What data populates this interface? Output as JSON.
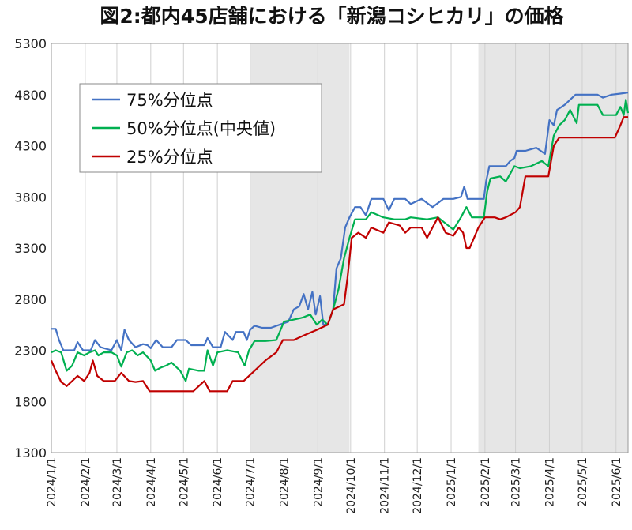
{
  "chart_data": {
    "type": "line",
    "title": "図2:都内45店舗における「新潟コシヒカリ」の価格",
    "xlabel": "",
    "ylabel": "",
    "ylim": [
      1300,
      5300
    ],
    "yticks": [
      1300,
      1800,
      2300,
      2800,
      3300,
      3800,
      4300,
      4800,
      5300
    ],
    "x_tick_labels": [
      "2024/1/1",
      "2024/2/1",
      "2024/3/1",
      "2024/4/1",
      "2024/5/1",
      "2024/6/1",
      "2024/7/1",
      "2024/8/1",
      "2024/9/1",
      "2024/10/1",
      "2024/11/1",
      "2024/12/1",
      "2025/1/1",
      "2025/2/1",
      "2025/3/1",
      "2025/4/1",
      "2025/5/1",
      "2025/6/1"
    ],
    "x_range": [
      "2024-01-01",
      "2025-06-12"
    ],
    "grid": "vertical",
    "legend_position": "top-left",
    "shaded_periods": [
      [
        "2024-07-01",
        "2024-09-30"
      ],
      [
        "2025-01-26",
        "2025-06-12"
      ]
    ],
    "series": [
      {
        "name": "75%分位点",
        "color": "#4472C4",
        "points": [
          [
            "2024-01-01",
            2510
          ],
          [
            "2024-01-05",
            2510
          ],
          [
            "2024-01-08",
            2400
          ],
          [
            "2024-01-12",
            2300
          ],
          [
            "2024-01-22",
            2300
          ],
          [
            "2024-01-25",
            2380
          ],
          [
            "2024-01-30",
            2300
          ],
          [
            "2024-02-06",
            2300
          ],
          [
            "2024-02-10",
            2400
          ],
          [
            "2024-02-15",
            2330
          ],
          [
            "2024-02-25",
            2300
          ],
          [
            "2024-03-01",
            2400
          ],
          [
            "2024-03-05",
            2300
          ],
          [
            "2024-03-08",
            2500
          ],
          [
            "2024-03-12",
            2400
          ],
          [
            "2024-03-18",
            2330
          ],
          [
            "2024-03-25",
            2360
          ],
          [
            "2024-03-29",
            2350
          ],
          [
            "2024-04-01",
            2320
          ],
          [
            "2024-04-06",
            2400
          ],
          [
            "2024-04-12",
            2330
          ],
          [
            "2024-04-20",
            2330
          ],
          [
            "2024-04-25",
            2400
          ],
          [
            "2024-05-03",
            2400
          ],
          [
            "2024-05-08",
            2350
          ],
          [
            "2024-05-20",
            2350
          ],
          [
            "2024-05-23",
            2420
          ],
          [
            "2024-05-28",
            2330
          ],
          [
            "2024-06-04",
            2330
          ],
          [
            "2024-06-08",
            2480
          ],
          [
            "2024-06-15",
            2400
          ],
          [
            "2024-06-18",
            2480
          ],
          [
            "2024-06-25",
            2480
          ],
          [
            "2024-06-28",
            2400
          ],
          [
            "2024-07-01",
            2500
          ],
          [
            "2024-07-05",
            2540
          ],
          [
            "2024-07-12",
            2520
          ],
          [
            "2024-07-20",
            2520
          ],
          [
            "2024-07-28",
            2550
          ],
          [
            "2024-08-05",
            2580
          ],
          [
            "2024-08-10",
            2700
          ],
          [
            "2024-08-15",
            2730
          ],
          [
            "2024-08-19",
            2850
          ],
          [
            "2024-08-23",
            2700
          ],
          [
            "2024-08-27",
            2870
          ],
          [
            "2024-08-30",
            2650
          ],
          [
            "2024-09-03",
            2830
          ],
          [
            "2024-09-06",
            2550
          ],
          [
            "2024-09-10",
            2550
          ],
          [
            "2024-09-15",
            2700
          ],
          [
            "2024-09-18",
            3100
          ],
          [
            "2024-09-22",
            3200
          ],
          [
            "2024-09-26",
            3500
          ],
          [
            "2024-09-30",
            3600
          ],
          [
            "2024-10-05",
            3700
          ],
          [
            "2024-10-10",
            3700
          ],
          [
            "2024-10-15",
            3620
          ],
          [
            "2024-10-20",
            3780
          ],
          [
            "2024-10-31",
            3780
          ],
          [
            "2024-11-05",
            3670
          ],
          [
            "2024-11-10",
            3780
          ],
          [
            "2024-11-20",
            3780
          ],
          [
            "2024-11-25",
            3730
          ],
          [
            "2024-12-05",
            3780
          ],
          [
            "2024-12-15",
            3700
          ],
          [
            "2024-12-25",
            3780
          ],
          [
            "2025-01-03",
            3780
          ],
          [
            "2025-01-10",
            3800
          ],
          [
            "2025-01-13",
            3900
          ],
          [
            "2025-01-16",
            3780
          ],
          [
            "2025-01-31",
            3780
          ],
          [
            "2025-02-02",
            3950
          ],
          [
            "2025-02-05",
            4100
          ],
          [
            "2025-02-20",
            4100
          ],
          [
            "2025-02-24",
            4150
          ],
          [
            "2025-02-28",
            4180
          ],
          [
            "2025-03-02",
            4250
          ],
          [
            "2025-03-10",
            4250
          ],
          [
            "2025-03-20",
            4280
          ],
          [
            "2025-03-28",
            4220
          ],
          [
            "2025-04-01",
            4550
          ],
          [
            "2025-04-05",
            4500
          ],
          [
            "2025-04-08",
            4650
          ],
          [
            "2025-04-15",
            4700
          ],
          [
            "2025-04-20",
            4750
          ],
          [
            "2025-04-25",
            4800
          ],
          [
            "2025-05-15",
            4800
          ],
          [
            "2025-05-20",
            4770
          ],
          [
            "2025-05-28",
            4800
          ],
          [
            "2025-06-05",
            4810
          ],
          [
            "2025-06-12",
            4820
          ]
        ]
      },
      {
        "name": "50%分位点(中央値)",
        "color": "#00B050",
        "points": [
          [
            "2024-01-01",
            2280
          ],
          [
            "2024-01-05",
            2300
          ],
          [
            "2024-01-10",
            2280
          ],
          [
            "2024-01-15",
            2100
          ],
          [
            "2024-01-20",
            2150
          ],
          [
            "2024-01-25",
            2280
          ],
          [
            "2024-01-31",
            2250
          ],
          [
            "2024-02-05",
            2280
          ],
          [
            "2024-02-10",
            2300
          ],
          [
            "2024-02-13",
            2250
          ],
          [
            "2024-02-18",
            2280
          ],
          [
            "2024-02-25",
            2280
          ],
          [
            "2024-03-01",
            2250
          ],
          [
            "2024-03-05",
            2140
          ],
          [
            "2024-03-10",
            2280
          ],
          [
            "2024-03-15",
            2300
          ],
          [
            "2024-03-20",
            2250
          ],
          [
            "2024-03-25",
            2280
          ],
          [
            "2024-04-01",
            2200
          ],
          [
            "2024-04-05",
            2100
          ],
          [
            "2024-04-10",
            2130
          ],
          [
            "2024-04-15",
            2150
          ],
          [
            "2024-04-20",
            2180
          ],
          [
            "2024-04-28",
            2100
          ],
          [
            "2024-05-03",
            2000
          ],
          [
            "2024-05-06",
            2120
          ],
          [
            "2024-05-15",
            2100
          ],
          [
            "2024-05-20",
            2100
          ],
          [
            "2024-05-23",
            2300
          ],
          [
            "2024-05-28",
            2150
          ],
          [
            "2024-06-01",
            2280
          ],
          [
            "2024-06-10",
            2300
          ],
          [
            "2024-06-20",
            2280
          ],
          [
            "2024-06-26",
            2150
          ],
          [
            "2024-06-30",
            2300
          ],
          [
            "2024-07-05",
            2390
          ],
          [
            "2024-07-15",
            2390
          ],
          [
            "2024-07-25",
            2400
          ],
          [
            "2024-08-01",
            2580
          ],
          [
            "2024-08-10",
            2600
          ],
          [
            "2024-08-18",
            2620
          ],
          [
            "2024-08-25",
            2650
          ],
          [
            "2024-08-31",
            2550
          ],
          [
            "2024-09-05",
            2600
          ],
          [
            "2024-09-10",
            2550
          ],
          [
            "2024-09-15",
            2700
          ],
          [
            "2024-09-20",
            2900
          ],
          [
            "2024-09-25",
            3200
          ],
          [
            "2024-09-30",
            3400
          ],
          [
            "2024-10-05",
            3580
          ],
          [
            "2024-10-15",
            3580
          ],
          [
            "2024-10-20",
            3650
          ],
          [
            "2024-10-31",
            3600
          ],
          [
            "2024-11-10",
            3580
          ],
          [
            "2024-11-20",
            3580
          ],
          [
            "2024-11-25",
            3600
          ],
          [
            "2024-12-10",
            3580
          ],
          [
            "2024-12-20",
            3600
          ],
          [
            "2025-01-03",
            3480
          ],
          [
            "2025-01-10",
            3600
          ],
          [
            "2025-01-15",
            3700
          ],
          [
            "2025-01-20",
            3600
          ],
          [
            "2025-01-31",
            3600
          ],
          [
            "2025-02-03",
            3850
          ],
          [
            "2025-02-06",
            3980
          ],
          [
            "2025-02-15",
            4000
          ],
          [
            "2025-02-20",
            3950
          ],
          [
            "2025-02-28",
            4100
          ],
          [
            "2025-03-05",
            4080
          ],
          [
            "2025-03-15",
            4100
          ],
          [
            "2025-03-25",
            4150
          ],
          [
            "2025-03-31",
            4100
          ],
          [
            "2025-04-05",
            4400
          ],
          [
            "2025-04-10",
            4500
          ],
          [
            "2025-04-15",
            4550
          ],
          [
            "2025-04-20",
            4650
          ],
          [
            "2025-04-26",
            4520
          ],
          [
            "2025-04-28",
            4700
          ],
          [
            "2025-05-15",
            4700
          ],
          [
            "2025-05-20",
            4600
          ],
          [
            "2025-06-01",
            4600
          ],
          [
            "2025-06-05",
            4680
          ],
          [
            "2025-06-08",
            4600
          ],
          [
            "2025-06-10",
            4750
          ],
          [
            "2025-06-12",
            4620
          ]
        ]
      },
      {
        "name": "25%分位点",
        "color": "#C00000",
        "points": [
          [
            "2024-01-01",
            2200
          ],
          [
            "2024-01-05",
            2100
          ],
          [
            "2024-01-10",
            1990
          ],
          [
            "2024-01-15",
            1950
          ],
          [
            "2024-01-20",
            2000
          ],
          [
            "2024-01-25",
            2050
          ],
          [
            "2024-01-31",
            2000
          ],
          [
            "2024-02-05",
            2080
          ],
          [
            "2024-02-08",
            2200
          ],
          [
            "2024-02-12",
            2050
          ],
          [
            "2024-02-18",
            2000
          ],
          [
            "2024-02-28",
            2000
          ],
          [
            "2024-03-05",
            2080
          ],
          [
            "2024-03-12",
            2000
          ],
          [
            "2024-03-18",
            1990
          ],
          [
            "2024-03-25",
            2000
          ],
          [
            "2024-03-31",
            1900
          ],
          [
            "2024-04-10",
            1900
          ],
          [
            "2024-04-20",
            1900
          ],
          [
            "2024-05-10",
            1900
          ],
          [
            "2024-05-15",
            1950
          ],
          [
            "2024-05-20",
            2000
          ],
          [
            "2024-05-25",
            1900
          ],
          [
            "2024-06-10",
            1900
          ],
          [
            "2024-06-15",
            2000
          ],
          [
            "2024-06-25",
            2000
          ],
          [
            "2024-06-30",
            2050
          ],
          [
            "2024-07-05",
            2100
          ],
          [
            "2024-07-15",
            2200
          ],
          [
            "2024-07-25",
            2280
          ],
          [
            "2024-07-31",
            2400
          ],
          [
            "2024-08-10",
            2400
          ],
          [
            "2024-08-20",
            2450
          ],
          [
            "2024-08-31",
            2500
          ],
          [
            "2024-09-10",
            2550
          ],
          [
            "2024-09-15",
            2700
          ],
          [
            "2024-09-25",
            2750
          ],
          [
            "2024-09-28",
            3000
          ],
          [
            "2024-10-02",
            3400
          ],
          [
            "2024-10-08",
            3450
          ],
          [
            "2024-10-15",
            3400
          ],
          [
            "2024-10-20",
            3500
          ],
          [
            "2024-10-31",
            3450
          ],
          [
            "2024-11-05",
            3550
          ],
          [
            "2024-11-15",
            3520
          ],
          [
            "2024-11-20",
            3450
          ],
          [
            "2024-11-25",
            3500
          ],
          [
            "2024-12-05",
            3500
          ],
          [
            "2024-12-10",
            3400
          ],
          [
            "2024-12-15",
            3500
          ],
          [
            "2024-12-20",
            3600
          ],
          [
            "2024-12-27",
            3450
          ],
          [
            "2025-01-03",
            3420
          ],
          [
            "2025-01-08",
            3500
          ],
          [
            "2025-01-12",
            3450
          ],
          [
            "2025-01-15",
            3300
          ],
          [
            "2025-01-18",
            3300
          ],
          [
            "2025-01-22",
            3400
          ],
          [
            "2025-01-26",
            3500
          ],
          [
            "2025-02-01",
            3600
          ],
          [
            "2025-02-10",
            3600
          ],
          [
            "2025-02-15",
            3580
          ],
          [
            "2025-02-20",
            3600
          ],
          [
            "2025-03-01",
            3650
          ],
          [
            "2025-03-05",
            3700
          ],
          [
            "2025-03-10",
            4000
          ],
          [
            "2025-03-31",
            4000
          ],
          [
            "2025-04-05",
            4300
          ],
          [
            "2025-04-10",
            4380
          ],
          [
            "2025-04-30",
            4380
          ],
          [
            "2025-05-20",
            4380
          ],
          [
            "2025-05-31",
            4380
          ],
          [
            "2025-06-05",
            4500
          ],
          [
            "2025-06-08",
            4580
          ],
          [
            "2025-06-12",
            4580
          ]
        ]
      }
    ]
  }
}
